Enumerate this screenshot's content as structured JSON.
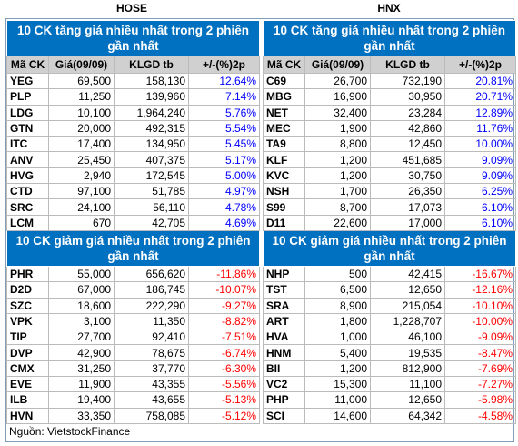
{
  "header": {
    "left": "HOSE",
    "right": "HNX"
  },
  "columns": [
    "Mã CK",
    "Giá(09/09)",
    "KLGD tb",
    "+/-(%)2p"
  ],
  "panels": [
    {
      "gainers": {
        "title": "10 CK tăng giá nhiều nhất trong 2 phiên gần nhất",
        "rows": [
          [
            "YEG",
            "69,500",
            "158,130",
            "12.64%"
          ],
          [
            "PLP",
            "11,250",
            "139,960",
            "7.14%"
          ],
          [
            "LDG",
            "10,100",
            "1,964,240",
            "5.76%"
          ],
          [
            "GTN",
            "20,000",
            "492,315",
            "5.54%"
          ],
          [
            "ITC",
            "17,400",
            "134,950",
            "5.45%"
          ],
          [
            "ANV",
            "25,450",
            "407,375",
            "5.17%"
          ],
          [
            "HVG",
            "2,940",
            "172,545",
            "5.00%"
          ],
          [
            "CTD",
            "97,100",
            "51,785",
            "4.97%"
          ],
          [
            "SRC",
            "24,100",
            "56,110",
            "4.78%"
          ],
          [
            "LCM",
            "670",
            "42,705",
            "4.69%"
          ]
        ]
      },
      "losers": {
        "title": "10 CK giảm giá nhiều nhất trong 2 phiên gần nhất",
        "rows": [
          [
            "PHR",
            "55,000",
            "656,620",
            "-11.86%"
          ],
          [
            "D2D",
            "67,000",
            "186,745",
            "-10.07%"
          ],
          [
            "SZC",
            "18,600",
            "222,290",
            "-9.27%"
          ],
          [
            "VPK",
            "3,100",
            "11,350",
            "-8.82%"
          ],
          [
            "TIP",
            "27,700",
            "92,410",
            "-7.51%"
          ],
          [
            "DVP",
            "42,900",
            "78,675",
            "-6.74%"
          ],
          [
            "CMX",
            "31,250",
            "37,770",
            "-6.30%"
          ],
          [
            "EVE",
            "11,900",
            "43,355",
            "-5.56%"
          ],
          [
            "ILB",
            "19,400",
            "43,655",
            "-5.13%"
          ],
          [
            "HVN",
            "33,350",
            "758,085",
            "-5.12%"
          ]
        ]
      }
    },
    {
      "gainers": {
        "title": "10 CK tăng giá nhiều nhất trong 2 phiên gần nhất",
        "rows": [
          [
            "C69",
            "26,700",
            "732,190",
            "20.81%"
          ],
          [
            "MBG",
            "16,900",
            "30,950",
            "20.71%"
          ],
          [
            "NET",
            "32,400",
            "23,284",
            "12.89%"
          ],
          [
            "MEC",
            "1,900",
            "42,860",
            "11.76%"
          ],
          [
            "TA9",
            "8,800",
            "12,450",
            "10.00%"
          ],
          [
            "KLF",
            "1,200",
            "451,685",
            "9.09%"
          ],
          [
            "KVC",
            "1,200",
            "30,750",
            "9.09%"
          ],
          [
            "NSH",
            "1,700",
            "26,350",
            "6.25%"
          ],
          [
            "S99",
            "8,700",
            "17,073",
            "6.10%"
          ],
          [
            "D11",
            "22,600",
            "17,000",
            "6.10%"
          ]
        ]
      },
      "losers": {
        "title": "10 CK giảm giá nhiều nhất trong 2 phiên gần nhất",
        "rows": [
          [
            "NHP",
            "500",
            "42,415",
            "-16.67%"
          ],
          [
            "TST",
            "6,500",
            "12,650",
            "-12.16%"
          ],
          [
            "SRA",
            "8,900",
            "215,054",
            "-10.10%"
          ],
          [
            "ART",
            "1,800",
            "1,228,707",
            "-10.00%"
          ],
          [
            "HVA",
            "1,000",
            "46,100",
            "-9.09%"
          ],
          [
            "HNM",
            "5,400",
            "19,535",
            "-8.47%"
          ],
          [
            "BII",
            "1,200",
            "812,900",
            "-7.69%"
          ],
          [
            "VC2",
            "15,300",
            "11,100",
            "-7.27%"
          ],
          [
            "PHP",
            "11,000",
            "12,650",
            "-5.98%"
          ],
          [
            "SCI",
            "14,600",
            "64,342",
            "-4.58%"
          ]
        ]
      }
    }
  ],
  "footer": "Nguồn: VietstockFinance"
}
